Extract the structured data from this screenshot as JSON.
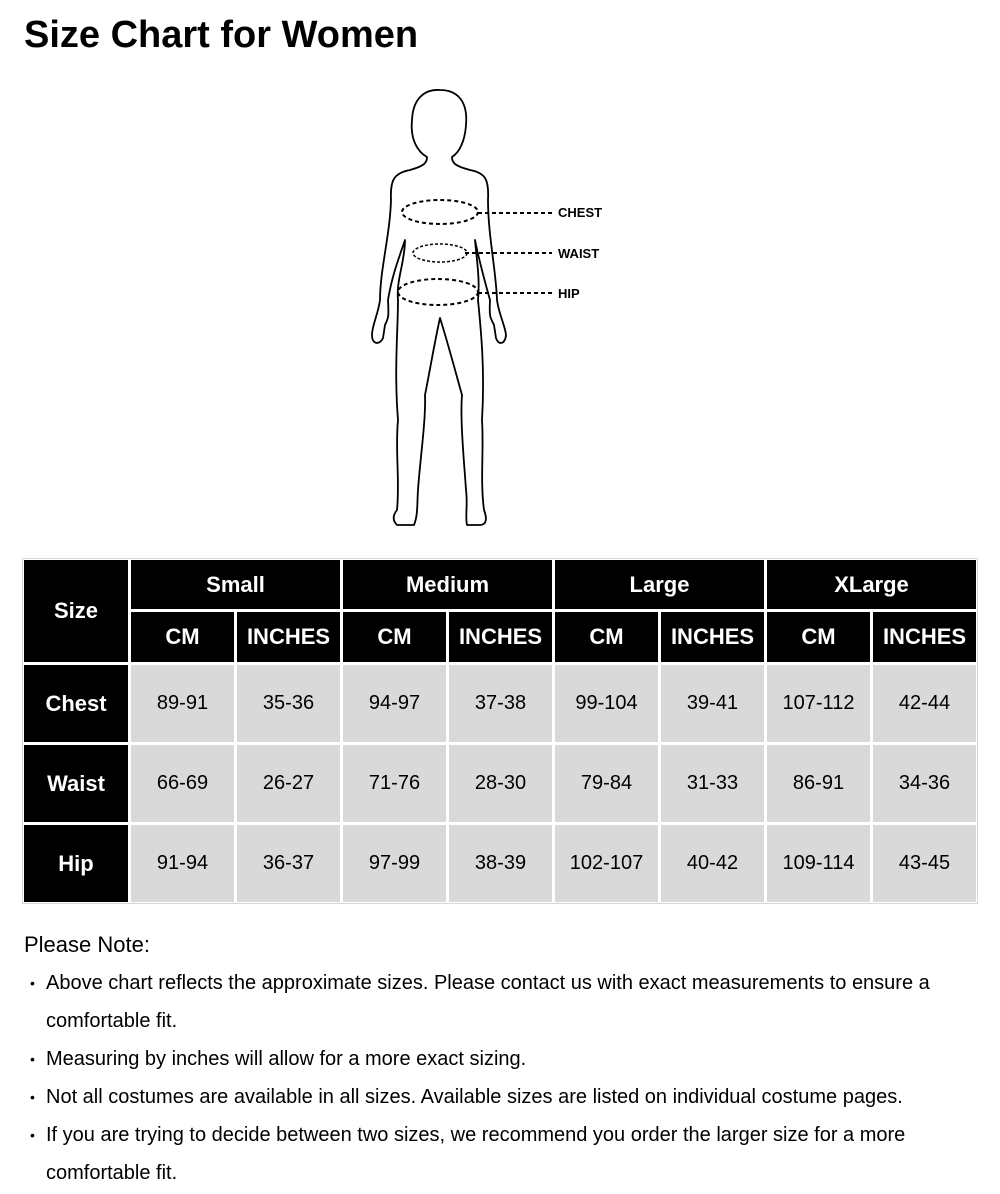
{
  "title": "Size Chart for Women",
  "figure": {
    "labels": {
      "chest": "CHEST",
      "waist": "WAIST",
      "hip": "HIP"
    },
    "icon": "female-body-outline"
  },
  "table": {
    "corner": "Size",
    "sizes": [
      "Small",
      "Medium",
      "Large",
      "XLarge"
    ],
    "units": [
      "CM",
      "INCHES"
    ],
    "rows": [
      {
        "label": "Chest",
        "values": [
          "89-91",
          "35-36",
          "94-97",
          "37-38",
          "99-104",
          "39-41",
          "107-112",
          "42-44"
        ]
      },
      {
        "label": "Waist",
        "values": [
          "66-69",
          "26-27",
          "71-76",
          "28-30",
          "79-84",
          "31-33",
          "86-91",
          "34-36"
        ]
      },
      {
        "label": "Hip",
        "values": [
          "91-94",
          "36-37",
          "97-99",
          "38-39",
          "102-107",
          "40-42",
          "109-114",
          "43-45"
        ]
      }
    ],
    "colors": {
      "header_bg": "#000000",
      "header_text": "#ffffff",
      "cell_bg": "#d9d9d9"
    }
  },
  "notes": {
    "title": "Please Note:",
    "items": [
      "Above chart reflects the approximate sizes. Please contact us with exact measurements to ensure a comfortable fit.",
      "Measuring by inches will allow for a more exact sizing.",
      "Not all costumes are available in all sizes. Available sizes are listed on individual costume pages.",
      "If you are trying to decide between two sizes, we recommend you order the larger size for a more comfortable fit."
    ]
  }
}
